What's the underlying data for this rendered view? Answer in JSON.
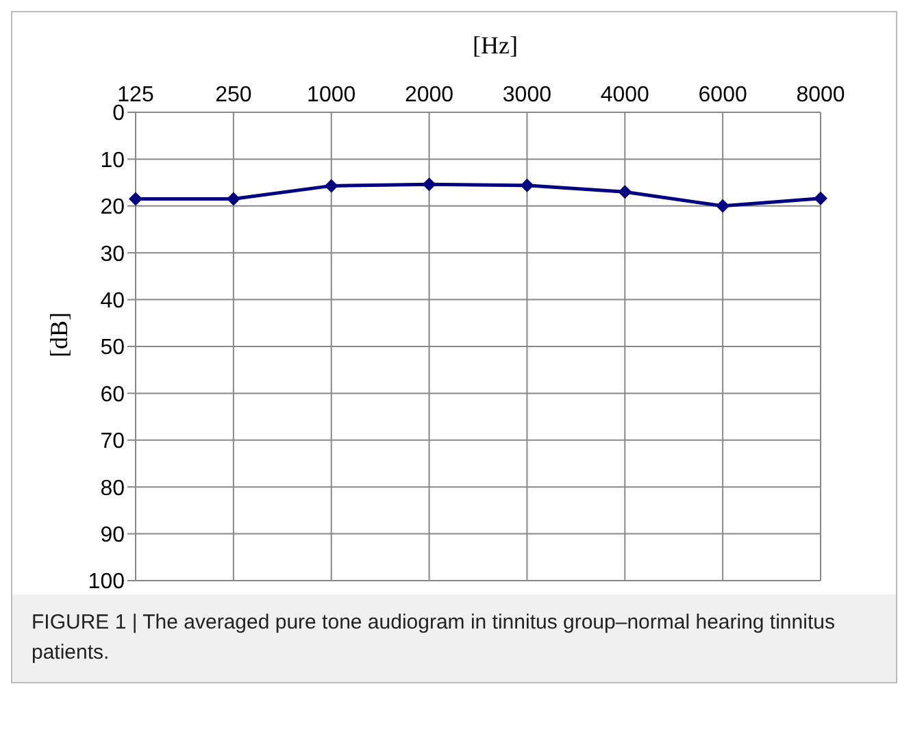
{
  "chart_data": {
    "type": "line",
    "xlabel": "[Hz]",
    "ylabel": "[dB]",
    "categories": [
      "125",
      "250",
      "1000",
      "2000",
      "3000",
      "4000",
      "6000",
      "8000"
    ],
    "series": [
      {
        "color": "#000080",
        "values": [
          18.5,
          18.5,
          15.7,
          15.4,
          15.6,
          17,
          20,
          18.4
        ]
      }
    ],
    "ylim": [
      100,
      0
    ],
    "yticks": [
      0,
      10,
      20,
      30,
      40,
      50,
      60,
      70,
      80,
      90,
      100
    ],
    "grid": true,
    "marker": "diamond",
    "legend": false,
    "annotations": [
      "FIGURE 1 | The averaged pure tone audiogram in tinnitus group–normal hearing tinnitus patients."
    ]
  }
}
